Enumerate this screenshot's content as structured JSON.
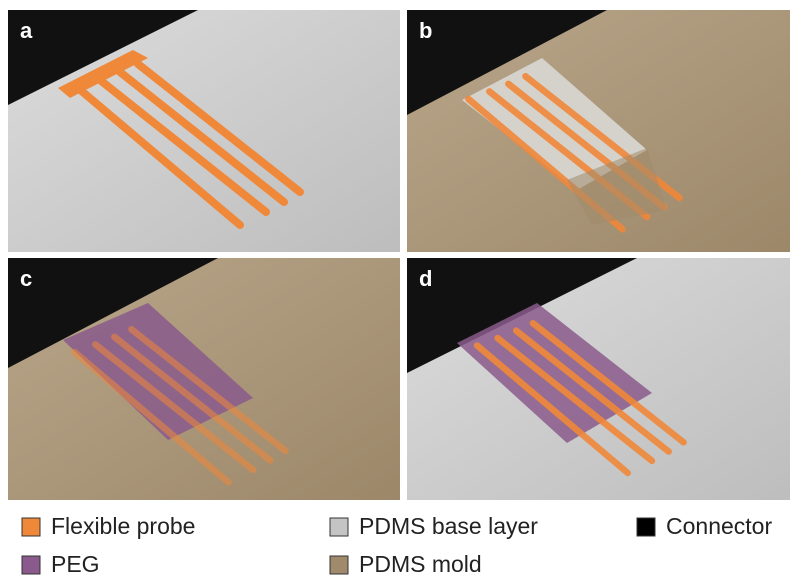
{
  "panels": [
    {
      "label": "a"
    },
    {
      "label": "b"
    },
    {
      "label": "c"
    },
    {
      "label": "d"
    }
  ],
  "legend": [
    {
      "label": "Flexible probe",
      "color": "#f0883a"
    },
    {
      "label": "PDMS base layer",
      "color": "#c4c4c4"
    },
    {
      "label": "Connector",
      "color": "#000000"
    },
    {
      "label": "PEG",
      "color": "#8a5a8c"
    },
    {
      "label": "PDMS mold",
      "color": "#a08a6c"
    }
  ]
}
